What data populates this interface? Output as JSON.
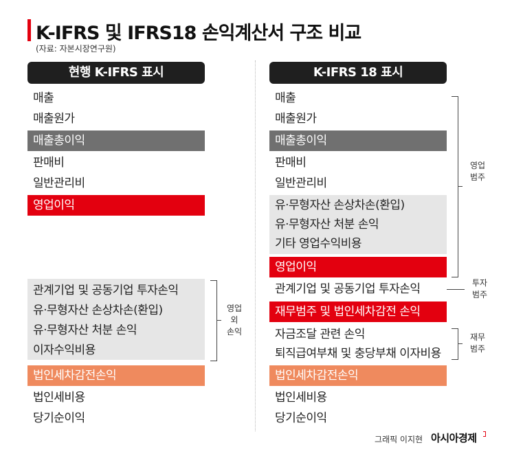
{
  "title": "K-IFRS 및 IFRS18 손익계산서 구조 비교",
  "source": "(자료: 자본시장연구원)",
  "colors": {
    "accent_red": "#e3000f",
    "header_black": "#1f1f1f",
    "gray_band": "#707070",
    "orange_band": "#ef8a5e",
    "light_gray_box": "#e6e6e6"
  },
  "left": {
    "header": "현행 K-IFRS 표시",
    "items": [
      "매출",
      "매출원가",
      "매출총이익",
      "판매비",
      "일반관리비",
      "영업이익"
    ],
    "non_operating": [
      "관계기업 및 공동기업 투자손익",
      "유·무형자산 손상차손(환입)",
      "유·무형자산 처분 손익",
      "이자수익비용"
    ],
    "non_operating_label": [
      "영업",
      "외",
      "손익"
    ],
    "bottom": [
      "법인세차감전손익",
      "법인세비용",
      "당기순이익"
    ]
  },
  "right": {
    "header": "K-IFRS 18 표시",
    "items": [
      "매출",
      "매출원가",
      "매출총이익",
      "판매비",
      "일반관리비"
    ],
    "operating_extra": [
      "유·무형자산 손상차손(환입)",
      "유·무형자산 처분 손익",
      "기타 영업수익비용"
    ],
    "operating_profit": "영업이익",
    "operating_label": [
      "영업",
      "범주"
    ],
    "investment_item": "관계기업 및 공동기업 투자손익",
    "investment_label": [
      "투자",
      "범주"
    ],
    "financial_band": "재무범주 및 법인세차감전 손익",
    "financial_items": [
      "자금조달 관련 손익",
      "퇴직급여부채 및 충당부채 이자비용"
    ],
    "financial_label": [
      "재무",
      "범주"
    ],
    "bottom": [
      "법인세차감전손익",
      "법인세비용",
      "당기순이익"
    ]
  },
  "credit": "그래픽 이지현",
  "brand": "아시아경제"
}
